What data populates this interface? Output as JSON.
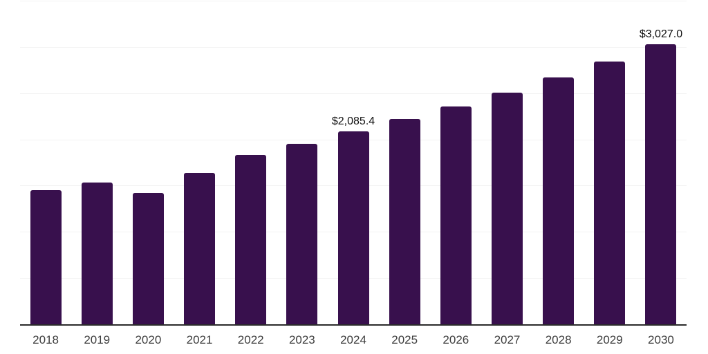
{
  "chart_data": {
    "type": "bar",
    "title": "",
    "xlabel": "",
    "ylabel": "",
    "categories": [
      "2018",
      "2019",
      "2020",
      "2021",
      "2022",
      "2023",
      "2024",
      "2025",
      "2026",
      "2027",
      "2028",
      "2029",
      "2030"
    ],
    "values": [
      1450,
      1532,
      1420,
      1638,
      1833,
      1952,
      2085.4,
      2218,
      2357,
      2506,
      2668,
      2840,
      3027
    ],
    "data_labels": {
      "2024": "$2,085.4",
      "2030": "$3,027.0"
    },
    "ylim": [
      0,
      3500
    ],
    "gridline_interval": 500,
    "grid": "horizontal",
    "legend": "none",
    "y_axis_labels_visible": false,
    "colors": {
      "bar": "#38104d",
      "axis": "#2b2b2b",
      "gridline": "#f2f2f2",
      "tick_label": "#3d3d3d",
      "data_label": "#0f0f0f"
    }
  }
}
